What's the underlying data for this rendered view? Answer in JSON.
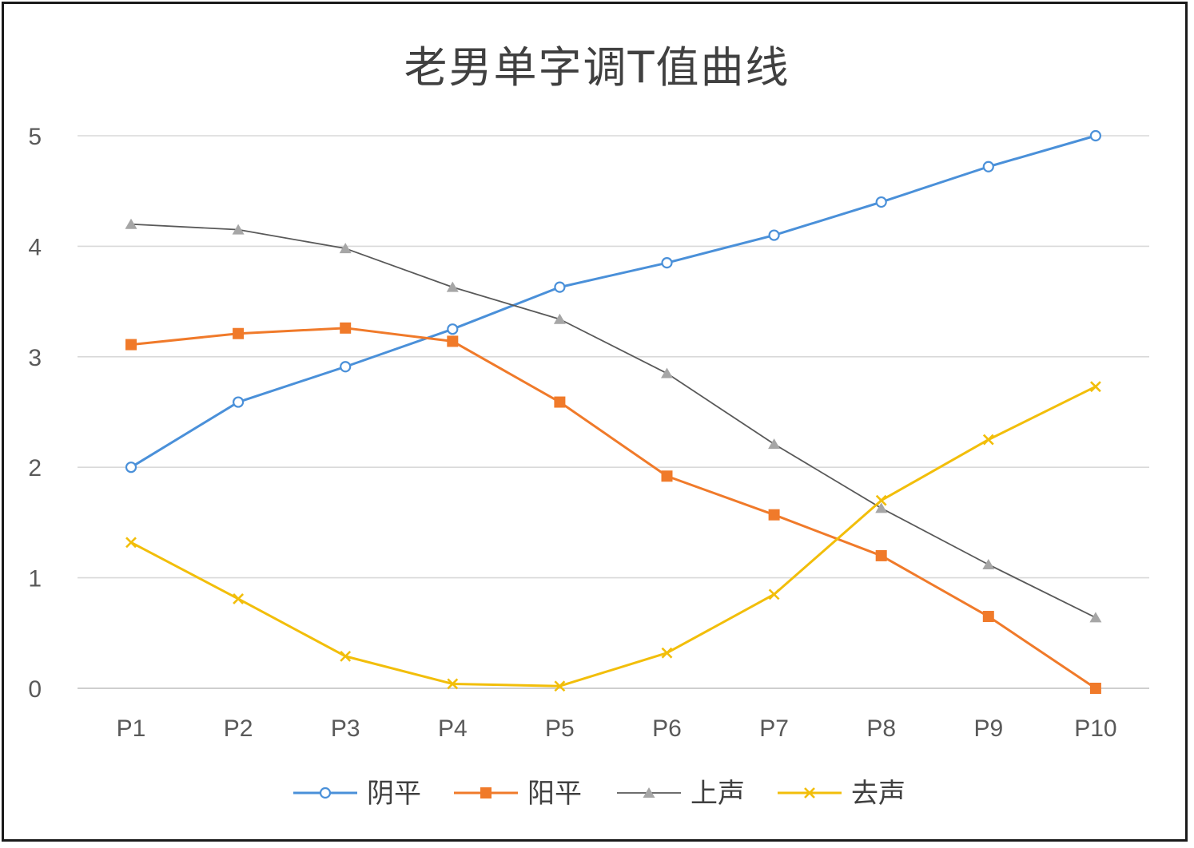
{
  "chart_data": {
    "type": "line",
    "title": "老男单字调T值曲线",
    "xlabel": "",
    "ylabel": "",
    "categories": [
      "P1",
      "P2",
      "P3",
      "P4",
      "P5",
      "P6",
      "P7",
      "P8",
      "P9",
      "P10"
    ],
    "ylim": [
      0,
      5
    ],
    "yticks": [
      0,
      1,
      2,
      3,
      4,
      5
    ],
    "grid": true,
    "legend_position": "bottom",
    "series": [
      {
        "name": "阴平",
        "color": "#4A90D9",
        "marker": "circle",
        "values": [
          2.0,
          2.59,
          2.91,
          3.25,
          3.63,
          3.85,
          4.1,
          4.4,
          4.72,
          5.0
        ]
      },
      {
        "name": "阳平",
        "color": "#F07A2A",
        "marker": "square",
        "values": [
          3.11,
          3.21,
          3.26,
          3.14,
          2.59,
          1.92,
          1.57,
          1.2,
          0.65,
          0.0
        ]
      },
      {
        "name": "上声",
        "color": "#595959",
        "marker": "triangle",
        "values": [
          4.2,
          4.15,
          3.98,
          3.63,
          3.34,
          2.85,
          2.21,
          1.63,
          1.12,
          0.64
        ]
      },
      {
        "name": "去声",
        "color": "#F2BE0A",
        "marker": "x",
        "values": [
          1.32,
          0.81,
          0.29,
          0.04,
          0.02,
          0.32,
          0.85,
          1.7,
          2.25,
          2.73
        ]
      }
    ]
  }
}
